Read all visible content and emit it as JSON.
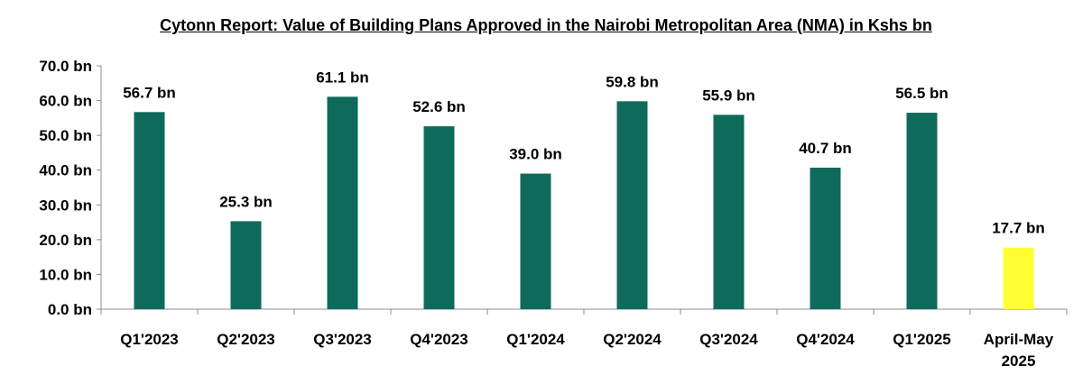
{
  "chart_data": {
    "type": "bar",
    "title": "Cytonn Report: Value of Building Plans Approved in the Nairobi Metropolitan Area (NMA) in Kshs bn",
    "categories": [
      [
        "Q1'2023"
      ],
      [
        "Q2'2023"
      ],
      [
        "Q3'2023"
      ],
      [
        "Q4'2023"
      ],
      [
        "Q1'2024"
      ],
      [
        "Q2'2024"
      ],
      [
        "Q3'2024"
      ],
      [
        "Q4'2024"
      ],
      [
        "Q1'2025"
      ],
      [
        "April-May",
        "2025"
      ]
    ],
    "values": [
      56.7,
      25.3,
      61.1,
      52.6,
      39.0,
      59.8,
      55.9,
      40.7,
      56.5,
      17.7
    ],
    "data_labels": [
      "56.7 bn",
      "25.3 bn",
      "61.1 bn",
      "52.6 bn",
      "39.0 bn",
      "59.8 bn",
      "55.9 bn",
      "40.7 bn",
      "56.5 bn",
      "17.7 bn"
    ],
    "y_ticks": [
      {
        "value": 0,
        "label": "0.0 bn"
      },
      {
        "value": 10,
        "label": "10.0 bn"
      },
      {
        "value": 20,
        "label": "20.0 bn"
      },
      {
        "value": 30,
        "label": "30.0 bn"
      },
      {
        "value": 40,
        "label": "40.0 bn"
      },
      {
        "value": 50,
        "label": "50.0 bn"
      },
      {
        "value": 60,
        "label": "60.0 bn"
      },
      {
        "value": 70,
        "label": "70.0 bn"
      }
    ],
    "ylim": [
      0,
      70
    ],
    "xlabel": "",
    "ylabel": "",
    "grid": false,
    "legend": "none",
    "colors": {
      "bar": "#0e6b5a",
      "highlight_bar": "#ffff33",
      "highlight_index": 9,
      "axis": "#8c8c8c"
    }
  }
}
